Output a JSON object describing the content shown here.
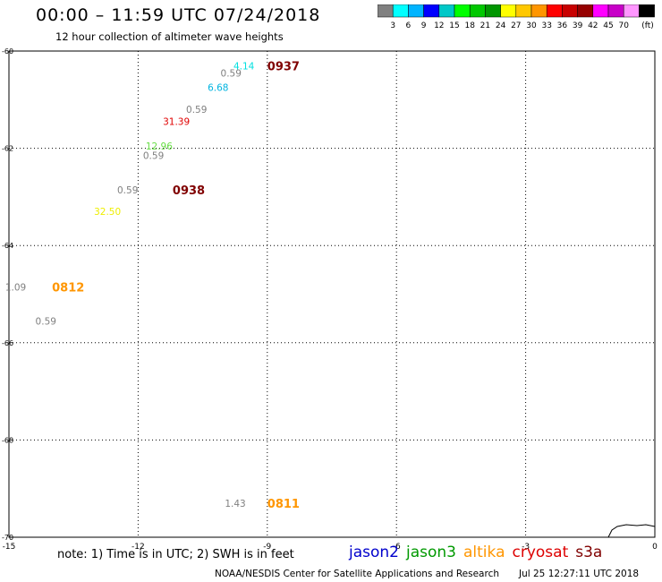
{
  "header": {
    "title": "00:00 – 11:59 UTC 07/24/2018",
    "subtitle": "12 hour collection of altimeter wave heights"
  },
  "colorbar": {
    "colors": [
      "#808080",
      "#00ffff",
      "#00b4ff",
      "#0000ff",
      "#00c8c8",
      "#00ff00",
      "#00c800",
      "#009600",
      "#ffff00",
      "#ffc800",
      "#ff9600",
      "#ff0000",
      "#c80000",
      "#960000",
      "#ff00ff",
      "#c800c8",
      "#ff96ff",
      "#000000"
    ],
    "ticks": [
      "3",
      "6",
      "9",
      "12",
      "15",
      "18",
      "21",
      "24",
      "27",
      "30",
      "33",
      "36",
      "39",
      "42",
      "45",
      "70"
    ],
    "unit": "(ft)"
  },
  "map": {
    "x_ticks": [
      "-15",
      "-12",
      "-9",
      "-6",
      "-3",
      "0"
    ],
    "y_ticks": [
      "-60",
      "-62",
      "-64",
      "-66",
      "-68",
      "-70"
    ],
    "points": [
      {
        "lon": -9.3,
        "lat": -60.3,
        "swh": "4.14",
        "color": "#00e0e0"
      },
      {
        "lon": -9.6,
        "lat": -60.45,
        "swh": "0.59",
        "color": "#808080"
      },
      {
        "lon": -9.9,
        "lat": -60.75,
        "swh": "6.68",
        "color": "#00b4e0"
      },
      {
        "lon": -10.4,
        "lat": -61.2,
        "swh": "0.59",
        "color": "#808080"
      },
      {
        "lon": -10.8,
        "lat": -61.45,
        "swh": "31.39",
        "color": "#e00000"
      },
      {
        "lon": -11.2,
        "lat": -61.95,
        "swh": "12.96",
        "color": "#66dd44"
      },
      {
        "lon": -11.4,
        "lat": -62.15,
        "swh": "0.59",
        "color": "#808080"
      },
      {
        "lon": -12.0,
        "lat": -62.85,
        "swh": "0.59",
        "color": "#808080"
      },
      {
        "lon": -12.4,
        "lat": -63.3,
        "swh": "32.50",
        "color": "#eeee00"
      },
      {
        "lon": -14.6,
        "lat": -64.85,
        "swh": "1.09",
        "color": "#808080"
      },
      {
        "lon": -13.9,
        "lat": -65.55,
        "swh": "0.59",
        "color": "#808080"
      },
      {
        "lon": -9.5,
        "lat": -69.3,
        "swh": "1.43",
        "color": "#808080"
      }
    ],
    "passes": [
      {
        "lon": -9.0,
        "lat": -60.3,
        "label": "0937",
        "color": "#800000"
      },
      {
        "lon": -11.2,
        "lat": -62.85,
        "label": "0938",
        "color": "#800000"
      },
      {
        "lon": -14.0,
        "lat": -64.85,
        "label": "0812",
        "color": "#ff9600"
      },
      {
        "lon": -9.0,
        "lat": -69.3,
        "label": "0811",
        "color": "#ff9600"
      }
    ]
  },
  "footer": {
    "note": "note: 1) Time is in UTC; 2) SWH is in feet",
    "legend": [
      {
        "label": "jason2",
        "color": "#0000cc"
      },
      {
        "label": "jason3",
        "color": "#009900"
      },
      {
        "label": "altika",
        "color": "#ff9600"
      },
      {
        "label": "cryosat",
        "color": "#dd0000"
      },
      {
        "label": "s3a",
        "color": "#800000"
      }
    ],
    "credit": "NOAA/NESDIS Center for Satellite Applications and Research",
    "timestamp": "Jul 25 12:27:11 UTC 2018"
  }
}
